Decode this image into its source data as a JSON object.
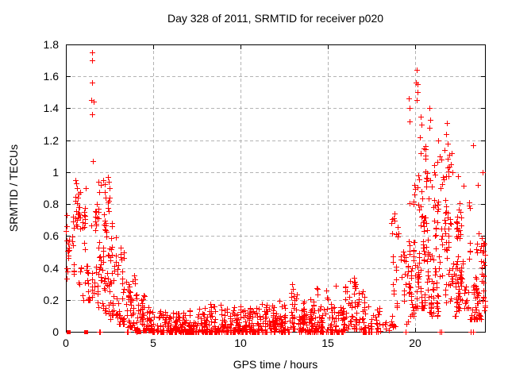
{
  "chart_data": {
    "type": "scatter",
    "title": "Day 328 of 2011, SRMTID for receiver p020",
    "xlabel": "GPS time / hours",
    "ylabel": "SRMTID / TECUs",
    "xlim": [
      0,
      24
    ],
    "ylim": [
      0,
      1.8
    ],
    "xticks": [
      0,
      5,
      10,
      15,
      20
    ],
    "xtick_labels": [
      "0",
      "5",
      "10",
      "15",
      "20"
    ],
    "yticks": [
      0,
      0.2,
      0.4,
      0.6,
      0.8,
      1,
      1.2,
      1.4,
      1.6,
      1.8
    ],
    "ytick_labels": [
      "0",
      "0.2",
      "0.4",
      "0.6",
      "0.8",
      "1",
      "1.2",
      "1.4",
      "1.6",
      "1.8"
    ],
    "grid": "dashed",
    "grid_color": "#b3b3b3",
    "border_color": "#000000",
    "text_color": "#000000",
    "background": "#ffffff",
    "marker": "plus",
    "marker_color": "#ff0000",
    "legend": "none",
    "seed": 1328,
    "clusters": [
      [
        0.0,
        0.3,
        10,
        0.3,
        0.75,
        1.0
      ],
      [
        0.3,
        0.6,
        16,
        0.35,
        0.88,
        1.1
      ],
      [
        0.6,
        0.9,
        18,
        0.3,
        0.9,
        1.2
      ],
      [
        0.9,
        1.2,
        16,
        0.2,
        0.85,
        1.3
      ],
      [
        1.2,
        1.6,
        18,
        0.2,
        0.95,
        1.2
      ],
      [
        1.6,
        2.0,
        35,
        0.15,
        0.93,
        1.3
      ],
      [
        2.0,
        2.5,
        45,
        0.12,
        0.93,
        1.5
      ],
      [
        2.5,
        3.0,
        40,
        0.08,
        0.8,
        1.6
      ],
      [
        3.0,
        3.5,
        35,
        0.05,
        0.55,
        1.7
      ],
      [
        3.5,
        4.0,
        40,
        0.03,
        0.38,
        1.8
      ],
      [
        4.0,
        4.5,
        45,
        0.01,
        0.24,
        1.8
      ],
      [
        4.5,
        5.0,
        40,
        0.01,
        0.16,
        1.6
      ],
      [
        5.0,
        6.0,
        70,
        0.0,
        0.13,
        1.4
      ],
      [
        6.0,
        7.0,
        70,
        0.0,
        0.12,
        1.4
      ],
      [
        7.0,
        8.0,
        75,
        0.0,
        0.16,
        1.5
      ],
      [
        8.0,
        9.0,
        75,
        0.0,
        0.18,
        1.5
      ],
      [
        9.0,
        10.0,
        75,
        0.0,
        0.17,
        1.5
      ],
      [
        10.0,
        11.0,
        75,
        0.0,
        0.16,
        1.4
      ],
      [
        11.0,
        12.0,
        70,
        0.0,
        0.18,
        1.4
      ],
      [
        12.0,
        12.8,
        55,
        0.0,
        0.2,
        1.4
      ],
      [
        12.8,
        13.2,
        30,
        0.02,
        0.3,
        1.3
      ],
      [
        13.2,
        14.0,
        55,
        0.0,
        0.2,
        1.4
      ],
      [
        14.0,
        15.0,
        70,
        0.0,
        0.28,
        1.5
      ],
      [
        15.0,
        16.0,
        65,
        0.0,
        0.3,
        1.4
      ],
      [
        16.0,
        17.0,
        60,
        0.02,
        0.34,
        1.4
      ],
      [
        17.0,
        17.5,
        30,
        0.0,
        0.25,
        1.4
      ],
      [
        17.5,
        18.0,
        15,
        0.0,
        0.15,
        1.3
      ],
      [
        18.0,
        18.6,
        8,
        0.0,
        0.08,
        1.2
      ],
      [
        18.6,
        19.1,
        30,
        0.03,
        0.8,
        1.6
      ],
      [
        19.1,
        19.6,
        22,
        0.05,
        0.55,
        1.4
      ],
      [
        19.6,
        20.0,
        40,
        0.1,
        1.0,
        1.3
      ],
      [
        20.0,
        20.5,
        55,
        0.15,
        1.35,
        1.4
      ],
      [
        20.5,
        21.0,
        50,
        0.1,
        1.3,
        1.5
      ],
      [
        21.0,
        21.5,
        45,
        0.1,
        1.1,
        1.4
      ],
      [
        21.5,
        22.0,
        45,
        0.15,
        1.3,
        1.5
      ],
      [
        22.0,
        22.5,
        45,
        0.1,
        1.12,
        1.4
      ],
      [
        22.5,
        23.0,
        40,
        0.15,
        0.95,
        1.3
      ],
      [
        23.0,
        23.5,
        40,
        0.08,
        0.85,
        1.5
      ],
      [
        23.5,
        24.0,
        42,
        0.08,
        0.62,
        1.1
      ]
    ],
    "outliers": [
      [
        1.48,
        1.75
      ],
      [
        1.5,
        1.7
      ],
      [
        1.5,
        1.56
      ],
      [
        1.52,
        1.36
      ],
      [
        1.46,
        1.45
      ],
      [
        1.6,
        1.44
      ],
      [
        1.54,
        1.07
      ],
      [
        0.02,
        0.63
      ],
      [
        0.03,
        0.57
      ],
      [
        0.04,
        0.4
      ],
      [
        0.06,
        0.66
      ],
      [
        0.08,
        0.38
      ],
      [
        2.4,
        0.97
      ],
      [
        2.45,
        0.94
      ],
      [
        0.55,
        0.95
      ],
      [
        0.6,
        0.93
      ],
      [
        0.65,
        0.9
      ],
      [
        1.85,
        0.94
      ],
      [
        2.0,
        0.92
      ],
      [
        2.15,
        0.95
      ],
      [
        2.5,
        0.9
      ],
      [
        1.15,
        0.9
      ],
      [
        20.1,
        1.64
      ],
      [
        20.05,
        1.56
      ],
      [
        20.15,
        1.55
      ],
      [
        20.12,
        1.5
      ],
      [
        19.62,
        1.46
      ],
      [
        20.1,
        1.45
      ],
      [
        19.7,
        1.4
      ],
      [
        20.8,
        1.4
      ],
      [
        20.85,
        1.33
      ],
      [
        20.82,
        1.28
      ],
      [
        19.68,
        1.32
      ],
      [
        21.8,
        1.31
      ],
      [
        21.75,
        1.24
      ],
      [
        21.85,
        1.18
      ],
      [
        21.3,
        1.2
      ],
      [
        23.3,
        1.17
      ],
      [
        22.1,
        1.12
      ],
      [
        22.05,
        1.05
      ],
      [
        22.15,
        1.0
      ],
      [
        23.6,
        0.92
      ],
      [
        23.85,
        1.0
      ],
      [
        20.3,
        1.35
      ],
      [
        20.35,
        1.3
      ],
      [
        20.25,
        1.22
      ],
      [
        20.5,
        1.15
      ],
      [
        23.97,
        0.55
      ],
      [
        23.95,
        0.42
      ],
      [
        23.99,
        0.48
      ],
      [
        23.93,
        0.35
      ]
    ],
    "zero_points": [
      1.9,
      1.95,
      3.5,
      3.55,
      4.05,
      6.85,
      6.95,
      8.65,
      8.75,
      11.3,
      11.4,
      14.65,
      14.7,
      17.85,
      19.45,
      21.4,
      21.5,
      23.2,
      23.3
    ],
    "square_points": [
      0.12,
      1.12,
      4.2
    ]
  }
}
